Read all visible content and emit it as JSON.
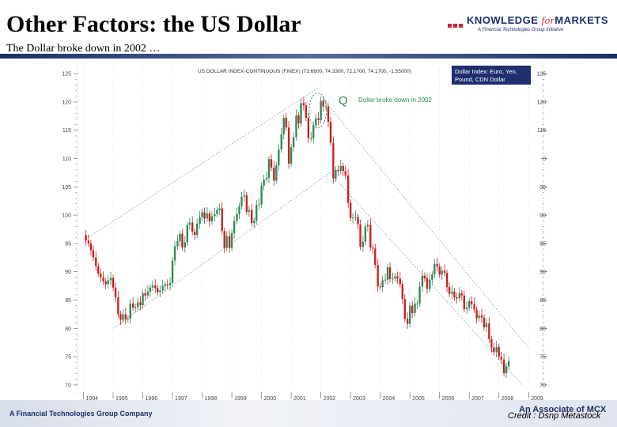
{
  "slide": {
    "title": "Other Factors: the US Dollar",
    "subtitle": "The Dollar broke down in 2002 …"
  },
  "logo": {
    "part1": "KNOWLEDGE ",
    "part2": "for",
    "part3": "MARKETS",
    "tagline": "A Financial Technologies Group Initiative"
  },
  "footer": {
    "left": "A Financial Technologies Group Company",
    "right": "An Associate of MCX",
    "credit": "Credit : Dsnp Metastock"
  },
  "colors": {
    "up": "#2e8b57",
    "down": "#cc1f1f",
    "channel": "#9aa6b2",
    "navy": "#1e2e6e",
    "brand_red": "#d2223a"
  },
  "chart_data": {
    "type": "candlestick",
    "title": "US DOLLAR INDEX-CONTINUOUS (FINEX) (73.6600, 74.3300, 72.1700, 74.1700, -1.55000)",
    "legend_box": "Dollar Index: Euro, Yen, Pound, CDN Dollar",
    "annotation": "Dollar broke down in 2002",
    "annotation_marker": "Q",
    "y_ticks": [
      70,
      75,
      80,
      85,
      90,
      95,
      100,
      105,
      110,
      115,
      120,
      125
    ],
    "ylim": [
      69,
      126
    ],
    "x_ticks": [
      "1994",
      "1995",
      "1996",
      "1997",
      "1998",
      "1999",
      "2000",
      "2001",
      "2002",
      "2003",
      "2004",
      "2005",
      "2006",
      "2007",
      "2008",
      "2009"
    ],
    "xlim": [
      1993.8,
      2009.1
    ],
    "right_axis_labels": [
      "125",
      "120",
      "115",
      "0",
      "00",
      "00",
      "95",
      "90",
      "85",
      "80",
      "75",
      "70"
    ],
    "monthly_close": [
      [
        1994.0,
        96.5
      ],
      [
        1994.08,
        95.5
      ],
      [
        1994.17,
        95.0
      ],
      [
        1994.25,
        93.8
      ],
      [
        1994.33,
        92.5
      ],
      [
        1994.42,
        91.0
      ],
      [
        1994.5,
        89.7
      ],
      [
        1994.58,
        89.0
      ],
      [
        1994.67,
        88.3
      ],
      [
        1994.75,
        87.8
      ],
      [
        1994.83,
        88.5
      ],
      [
        1994.92,
        88.9
      ],
      [
        1995.0,
        87.2
      ],
      [
        1995.08,
        85.5
      ],
      [
        1995.17,
        82.5
      ],
      [
        1995.25,
        81.5
      ],
      [
        1995.33,
        82.5
      ],
      [
        1995.42,
        81.6
      ],
      [
        1995.5,
        81.7
      ],
      [
        1995.58,
        84.4
      ],
      [
        1995.67,
        83.7
      ],
      [
        1995.75,
        83.8
      ],
      [
        1995.83,
        84.6
      ],
      [
        1995.92,
        84.1
      ],
      [
        1996.0,
        86.2
      ],
      [
        1996.08,
        85.8
      ],
      [
        1996.17,
        86.5
      ],
      [
        1996.25,
        87.2
      ],
      [
        1996.33,
        87.6
      ],
      [
        1996.42,
        87.1
      ],
      [
        1996.5,
        86.4
      ],
      [
        1996.58,
        86.7
      ],
      [
        1996.67,
        87.5
      ],
      [
        1996.75,
        87.8
      ],
      [
        1996.83,
        87.6
      ],
      [
        1996.92,
        88.0
      ],
      [
        1997.0,
        92.0
      ],
      [
        1997.08,
        94.5
      ],
      [
        1997.17,
        95.4
      ],
      [
        1997.25,
        96.7
      ],
      [
        1997.33,
        94.3
      ],
      [
        1997.42,
        95.2
      ],
      [
        1997.5,
        98.3
      ],
      [
        1997.58,
        98.7
      ],
      [
        1997.67,
        97.1
      ],
      [
        1997.75,
        96.5
      ],
      [
        1997.83,
        98.5
      ],
      [
        1997.92,
        99.6
      ],
      [
        1998.0,
        100.5
      ],
      [
        1998.08,
        99.4
      ],
      [
        1998.17,
        100.3
      ],
      [
        1998.25,
        98.9
      ],
      [
        1998.33,
        99.8
      ],
      [
        1998.42,
        100.2
      ],
      [
        1998.5,
        100.9
      ],
      [
        1998.58,
        101.2
      ],
      [
        1998.67,
        97.2
      ],
      [
        1998.75,
        94.2
      ],
      [
        1998.83,
        96.3
      ],
      [
        1998.92,
        94.2
      ],
      [
        1999.0,
        96.8
      ],
      [
        1999.08,
        99.0
      ],
      [
        1999.17,
        100.2
      ],
      [
        1999.25,
        101.6
      ],
      [
        1999.33,
        103.3
      ],
      [
        1999.42,
        103.5
      ],
      [
        1999.5,
        100.6
      ],
      [
        1999.58,
        100.9
      ],
      [
        1999.67,
        98.6
      ],
      [
        1999.75,
        99.0
      ],
      [
        1999.83,
        101.8
      ],
      [
        1999.92,
        101.9
      ],
      [
        2000.0,
        105.2
      ],
      [
        2000.08,
        106.3
      ],
      [
        2000.17,
        106.6
      ],
      [
        2000.25,
        109.9
      ],
      [
        2000.33,
        108.4
      ],
      [
        2000.42,
        106.1
      ],
      [
        2000.5,
        108.8
      ],
      [
        2000.58,
        111.6
      ],
      [
        2000.67,
        114.3
      ],
      [
        2000.75,
        117.2
      ],
      [
        2000.83,
        115.5
      ],
      [
        2000.92,
        109.1
      ],
      [
        2001.0,
        112.0
      ],
      [
        2001.08,
        113.8
      ],
      [
        2001.17,
        117.6
      ],
      [
        2001.25,
        116.2
      ],
      [
        2001.33,
        119.8
      ],
      [
        2001.42,
        119.4
      ],
      [
        2001.5,
        117.2
      ],
      [
        2001.58,
        113.6
      ],
      [
        2001.67,
        113.6
      ],
      [
        2001.75,
        115.9
      ],
      [
        2001.83,
        117.1
      ],
      [
        2001.92,
        116.8
      ],
      [
        2002.0,
        120.2
      ],
      [
        2002.08,
        119.2
      ],
      [
        2002.17,
        119.2
      ],
      [
        2002.25,
        116.5
      ],
      [
        2002.33,
        112.8
      ],
      [
        2002.42,
        106.5
      ],
      [
        2002.5,
        108.0
      ],
      [
        2002.58,
        107.8
      ],
      [
        2002.67,
        108.7
      ],
      [
        2002.75,
        107.8
      ],
      [
        2002.83,
        107.0
      ],
      [
        2002.92,
        102.2
      ],
      [
        2003.0,
        99.5
      ],
      [
        2003.08,
        99.6
      ],
      [
        2003.17,
        99.7
      ],
      [
        2003.25,
        98.4
      ],
      [
        2003.33,
        94.4
      ],
      [
        2003.42,
        95.3
      ],
      [
        2003.5,
        98.0
      ],
      [
        2003.58,
        98.3
      ],
      [
        2003.67,
        94.3
      ],
      [
        2003.75,
        94.1
      ],
      [
        2003.83,
        91.2
      ],
      [
        2003.92,
        87.4
      ],
      [
        2004.0,
        87.3
      ],
      [
        2004.08,
        88.5
      ],
      [
        2004.17,
        88.6
      ],
      [
        2004.25,
        90.8
      ],
      [
        2004.33,
        88.7
      ],
      [
        2004.42,
        88.8
      ],
      [
        2004.5,
        89.2
      ],
      [
        2004.58,
        88.8
      ],
      [
        2004.67,
        87.8
      ],
      [
        2004.75,
        85.2
      ],
      [
        2004.83,
        81.7
      ],
      [
        2004.92,
        80.8
      ],
      [
        2005.0,
        84.0
      ],
      [
        2005.08,
        82.7
      ],
      [
        2005.17,
        84.4
      ],
      [
        2005.25,
        84.4
      ],
      [
        2005.33,
        87.4
      ],
      [
        2005.42,
        89.3
      ],
      [
        2005.5,
        88.8
      ],
      [
        2005.58,
        87.0
      ],
      [
        2005.67,
        88.6
      ],
      [
        2005.75,
        89.5
      ],
      [
        2005.83,
        91.4
      ],
      [
        2005.92,
        90.9
      ],
      [
        2006.0,
        89.5
      ],
      [
        2006.08,
        90.2
      ],
      [
        2006.17,
        89.8
      ],
      [
        2006.25,
        87.3
      ],
      [
        2006.33,
        86.1
      ],
      [
        2006.42,
        86.5
      ],
      [
        2006.5,
        85.5
      ],
      [
        2006.58,
        85.3
      ],
      [
        2006.67,
        86.2
      ],
      [
        2006.75,
        85.8
      ],
      [
        2006.83,
        83.4
      ],
      [
        2006.92,
        83.7
      ],
      [
        2007.0,
        84.8
      ],
      [
        2007.08,
        84.3
      ],
      [
        2007.17,
        83.3
      ],
      [
        2007.25,
        81.8
      ],
      [
        2007.33,
        82.3
      ],
      [
        2007.42,
        81.9
      ],
      [
        2007.5,
        80.2
      ],
      [
        2007.58,
        80.9
      ],
      [
        2007.67,
        78.1
      ],
      [
        2007.75,
        76.6
      ],
      [
        2007.83,
        75.8
      ],
      [
        2007.92,
        76.7
      ],
      [
        2008.0,
        75.0
      ],
      [
        2008.08,
        74.5
      ],
      [
        2008.17,
        72.1
      ],
      [
        2008.25,
        73.3
      ],
      [
        2008.33,
        74.2
      ]
    ],
    "channels": [
      {
        "name": "",
        "points": [
          [
            1994.0,
            95.5
          ],
          [
            2001.9,
            122.5
          ]
        ]
      },
      {
        "name": "",
        "points": [
          [
            1995.0,
            80.0
          ],
          [
            2002.3,
            107.5
          ]
        ]
      },
      {
        "name": "",
        "points": [
          [
            2002.0,
            121.0
          ],
          [
            2009.0,
            76.5
          ]
        ]
      },
      {
        "name": "",
        "points": [
          [
            2002.3,
            107.5
          ],
          [
            2008.8,
            70.0
          ]
        ]
      }
    ]
  }
}
